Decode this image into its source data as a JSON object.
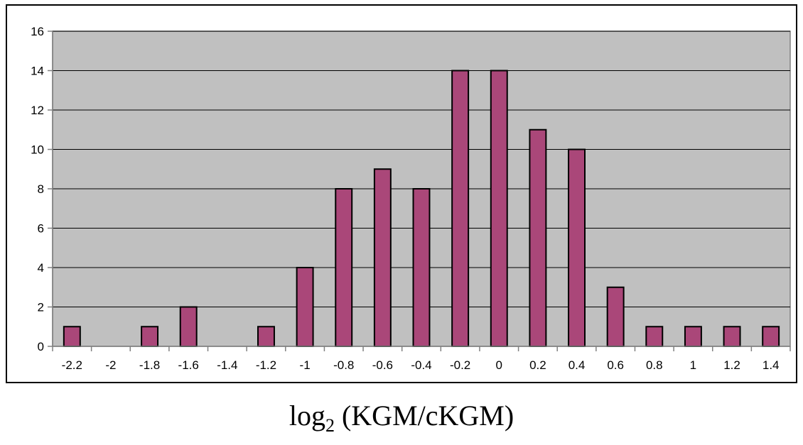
{
  "chart_data": {
    "type": "bar",
    "title": "",
    "xlabel": {
      "main": "log",
      "subscript": "2",
      "rest": " (KGM/cKGM)"
    },
    "ylabel": "",
    "categories": [
      "-2.2",
      "-2",
      "-1.8",
      "-1.6",
      "-1.4",
      "-1.2",
      "-1",
      "-0.8",
      "-0.6",
      "-0.4",
      "-0.2",
      "0",
      "0.2",
      "0.4",
      "0.6",
      "0.8",
      "1",
      "1.2",
      "1.4"
    ],
    "values": [
      1,
      0,
      1,
      2,
      0,
      1,
      4,
      8,
      9,
      8,
      14,
      14,
      11,
      10,
      3,
      1,
      1,
      1,
      1
    ],
    "ylim": [
      0,
      16
    ],
    "yticks": [
      0,
      2,
      4,
      6,
      8,
      10,
      12,
      14,
      16
    ],
    "grid": true,
    "legend": "none",
    "colors": {
      "bar_fill": "#AA4779",
      "bar_stroke": "#000000",
      "plot_background": "#C0C0C0",
      "gridline": "#000000",
      "axis": "#808080"
    }
  }
}
